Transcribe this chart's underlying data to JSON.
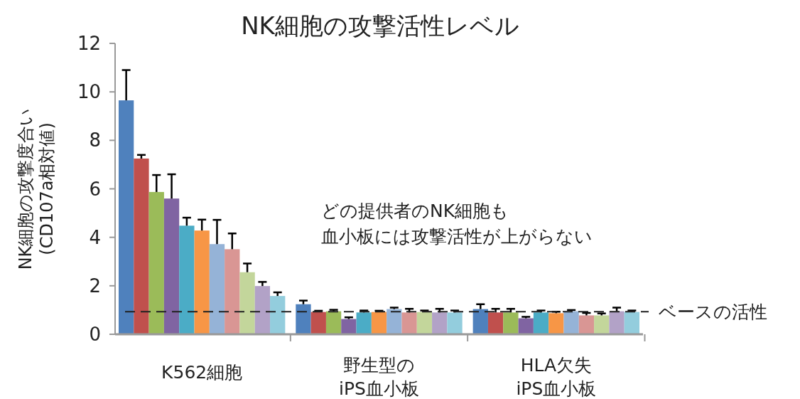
{
  "chart_data": {
    "type": "bar",
    "title": "NK細胞の攻撃活性レベル",
    "ylabel": "NK細胞の攻撃度合い\n(CD107a相対値)",
    "categories": [
      "K562細胞",
      "野生型の\niPS血小板",
      "HLA欠失\niPS血小板"
    ],
    "series": [
      {
        "color": "#4f81bd",
        "values": [
          9.65,
          1.24,
          1.04
        ],
        "errors": [
          1.25,
          0.15,
          0.2
        ]
      },
      {
        "color": "#c0504d",
        "values": [
          7.25,
          0.92,
          0.9
        ],
        "errors": [
          0.15,
          0.05,
          0.15
        ]
      },
      {
        "color": "#9bbb59",
        "values": [
          5.87,
          0.95,
          0.9
        ],
        "errors": [
          0.7,
          0.06,
          0.15
        ]
      },
      {
        "color": "#8064a2",
        "values": [
          5.6,
          0.63,
          0.66
        ],
        "errors": [
          1.0,
          0.07,
          0.06
        ]
      },
      {
        "color": "#4bacc6",
        "values": [
          4.48,
          0.9,
          0.9
        ],
        "errors": [
          0.33,
          0.08,
          0.08
        ]
      },
      {
        "color": "#f79646",
        "values": [
          4.28,
          0.92,
          0.87
        ],
        "errors": [
          0.45,
          0.05,
          0.06
        ]
      },
      {
        "color": "#95b3d7",
        "values": [
          3.72,
          1.04,
          0.95
        ],
        "errors": [
          1.0,
          0.06,
          0.05
        ]
      },
      {
        "color": "#d99694",
        "values": [
          3.51,
          0.9,
          0.78
        ],
        "errors": [
          0.65,
          0.15,
          0.1
        ]
      },
      {
        "color": "#c3d69b",
        "values": [
          2.56,
          0.92,
          0.78
        ],
        "errors": [
          0.36,
          0.06,
          0.08
        ]
      },
      {
        "color": "#b2a2c7",
        "values": [
          1.99,
          0.9,
          0.95
        ],
        "errors": [
          0.17,
          0.15,
          0.15
        ]
      },
      {
        "color": "#93cddd",
        "values": [
          1.58,
          0.9,
          0.92
        ],
        "errors": [
          0.15,
          0.08,
          0.06
        ]
      }
    ],
    "ylim": [
      0,
      12
    ],
    "yticks": [
      0,
      2,
      4,
      6,
      8,
      10,
      12
    ],
    "grid": false,
    "ref_lines": [
      {
        "axis": "y",
        "value": 0.93,
        "label": "ベースの活性",
        "color": "#222222",
        "line_style": "dashed"
      }
    ],
    "annotations": [
      "どの提供者のNK細胞も",
      "血小板には攻撃活性が上がらない"
    ]
  }
}
